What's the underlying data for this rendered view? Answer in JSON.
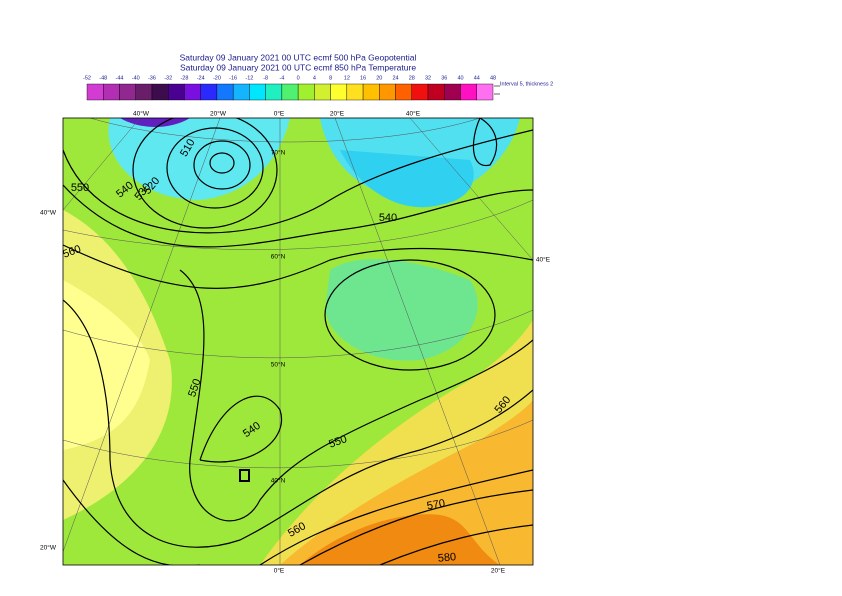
{
  "header": {
    "title_lines": [
      "Saturday 09 January 2021 00 UTC ecmf 500 hPa  Geopotential",
      "Saturday 09 January 2021 00 UTC ecmf 850 hPa  Temperature"
    ]
  },
  "colorbar": {
    "ticks": [
      -52,
      -48,
      -44,
      -40,
      -36,
      -32,
      -28,
      -24,
      -20,
      -16,
      -12,
      -8,
      -4,
      0,
      4,
      8,
      12,
      16,
      20,
      24,
      28,
      32,
      36,
      40,
      44,
      48
    ],
    "colors": [
      "#d23cd2",
      "#b22eb2",
      "#902890",
      "#6a1e6a",
      "#3c0c4c",
      "#4a0090",
      "#7a10e0",
      "#2a2aff",
      "#1478ff",
      "#14b4ff",
      "#00e6ff",
      "#20f0c0",
      "#50f070",
      "#a0f030",
      "#d0f030",
      "#ffff30",
      "#ffe020",
      "#ffc000",
      "#ff9800",
      "#ff6000",
      "#f01010",
      "#c00020",
      "#a00050",
      "#ff10c0",
      "#ff70f0",
      "#ffb8f8"
    ],
    "note": "Interval 5, thickness 2"
  },
  "map": {
    "top_labels": [
      "40°W",
      "20°W",
      "0°E",
      "20°E",
      "40°E"
    ],
    "left_labels": [
      "40°W",
      "20°W"
    ],
    "right_labels": [
      "40°E"
    ],
    "bottom_labels": [
      "0°E",
      "20°E"
    ],
    "lat_labels": [
      "70°N",
      "60°N",
      "50°N",
      "40°N"
    ],
    "contour_labels": [
      510,
      520,
      530,
      540,
      550,
      560,
      540,
      550,
      540,
      550,
      560,
      570,
      560,
      580
    ]
  }
}
